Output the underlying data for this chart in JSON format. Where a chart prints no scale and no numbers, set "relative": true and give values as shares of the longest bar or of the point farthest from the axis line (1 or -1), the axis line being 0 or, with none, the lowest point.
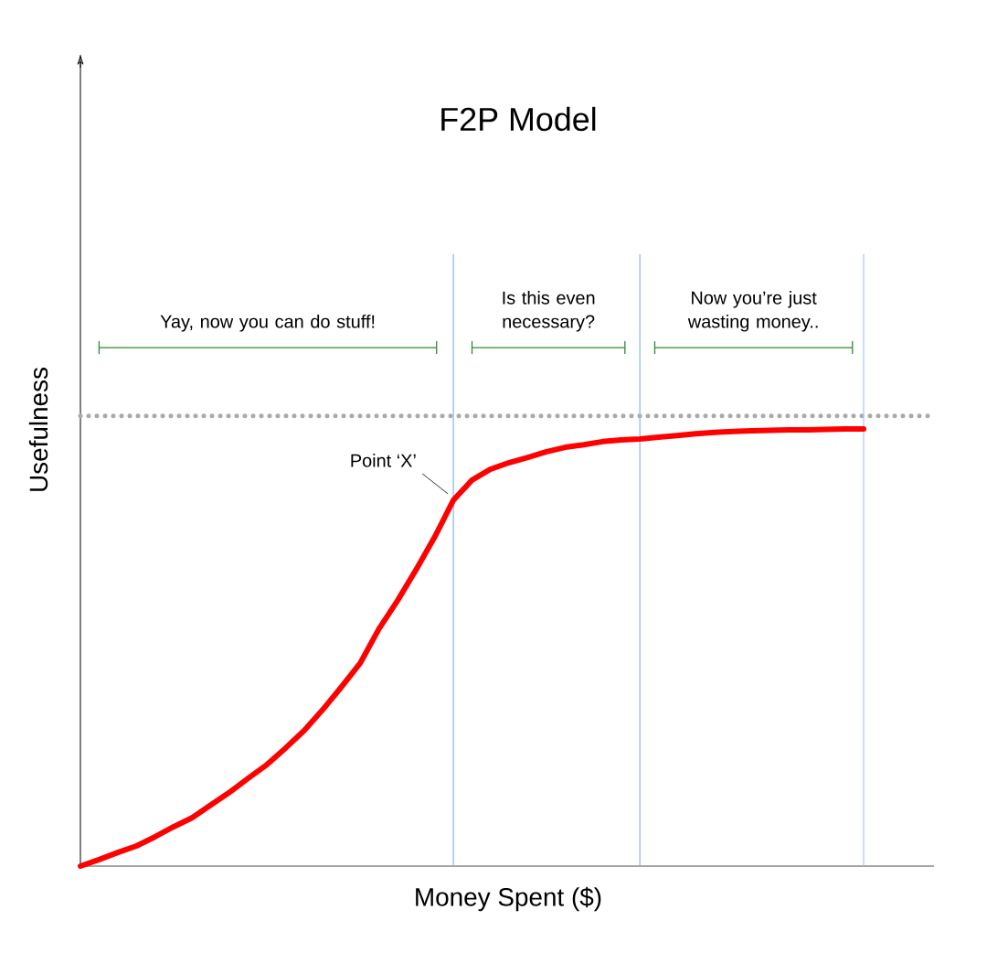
{
  "chart_data": {
    "type": "line",
    "title": "F2P Model",
    "xlabel": "Money Spent ($)",
    "ylabel": "Usefulness",
    "relative": true,
    "categories": [
      null,
      null,
      null,
      null,
      null,
      null,
      null,
      null,
      null,
      null,
      null,
      null,
      null,
      null,
      null,
      null,
      null,
      null,
      null,
      null,
      null,
      null,
      null,
      null,
      null,
      null,
      null,
      null,
      null,
      null,
      null,
      null,
      null,
      null,
      null,
      null,
      null,
      null,
      null,
      null,
      null,
      null,
      null
    ],
    "series": [
      {
        "color": "#ff0000",
        "values": [
          0,
          0.015,
          0.031,
          0.046,
          0.067,
          0.09,
          0.111,
          0.14,
          0.169,
          0.201,
          0.232,
          0.27,
          0.31,
          0.358,
          0.41,
          0.464,
          0.542,
          0.607,
          0.678,
          0.753,
          0.837,
          0.883,
          0.908,
          0.923,
          0.935,
          0.948,
          0.958,
          0.964,
          0.971,
          0.975,
          0.977,
          0.981,
          0.985,
          0.989,
          0.992,
          0.994,
          0.996,
          0.997,
          0.998,
          0.998,
          0.999,
          1,
          1
        ]
      }
    ],
    "ref_lines": [
      {
        "axis": "y",
        "value": 1.03,
        "color": "#aaaaaa",
        "line_style": "dotted"
      }
    ],
    "annotations": [
      "Yay, now you can do stuff!",
      "Is this even necessary?",
      "Now you’re just wasting money..",
      "Point ‘X’"
    ]
  }
}
